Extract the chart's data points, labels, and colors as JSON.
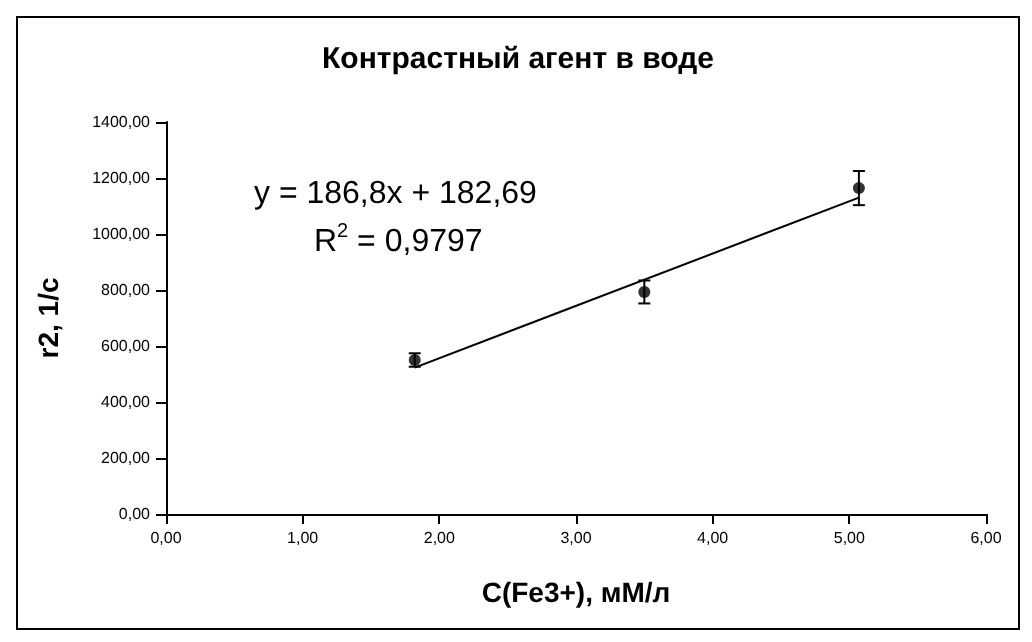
{
  "chart_data": {
    "type": "scatter",
    "title": "Контрастный агент в воде",
    "xlabel": "C(Fe3+), мМ/л",
    "ylabel": "r2, 1/с",
    "x": [
      1.82,
      3.5,
      5.07
    ],
    "series": [
      {
        "color": "#000000",
        "values": [
          550,
          793,
          1164
        ],
        "errors": [
          24,
          41,
          61
        ],
        "marker": "circle"
      },
      {
        "type": "line",
        "color": "#000000",
        "x": [
          1.82,
          5.07
        ],
        "values": [
          523,
          1130
        ],
        "marker": "none"
      }
    ],
    "xlim": [
      0,
      6
    ],
    "xticks": [
      {
        "value": 0,
        "label": "0,00"
      },
      {
        "value": 1,
        "label": "1,00"
      },
      {
        "value": 2,
        "label": "2,00"
      },
      {
        "value": 3,
        "label": "3,00"
      },
      {
        "value": 4,
        "label": "4,00"
      },
      {
        "value": 5,
        "label": "5,00"
      },
      {
        "value": 6,
        "label": "6,00"
      }
    ],
    "ylim": [
      0,
      1400
    ],
    "yticks": [
      {
        "value": 0,
        "label": "0,00"
      },
      {
        "value": 200,
        "label": "200,00"
      },
      {
        "value": 400,
        "label": "400,00"
      },
      {
        "value": 600,
        "label": "600,00"
      },
      {
        "value": 800,
        "label": "800,00"
      },
      {
        "value": 1000,
        "label": "1000,00"
      },
      {
        "value": 1200,
        "label": "1200,00"
      },
      {
        "value": 1400,
        "label": "1400,00"
      }
    ],
    "annotations": [
      "y = 186,8x + 182,69",
      "R$^{2}$ = 0,9797"
    ],
    "grid": false
  }
}
